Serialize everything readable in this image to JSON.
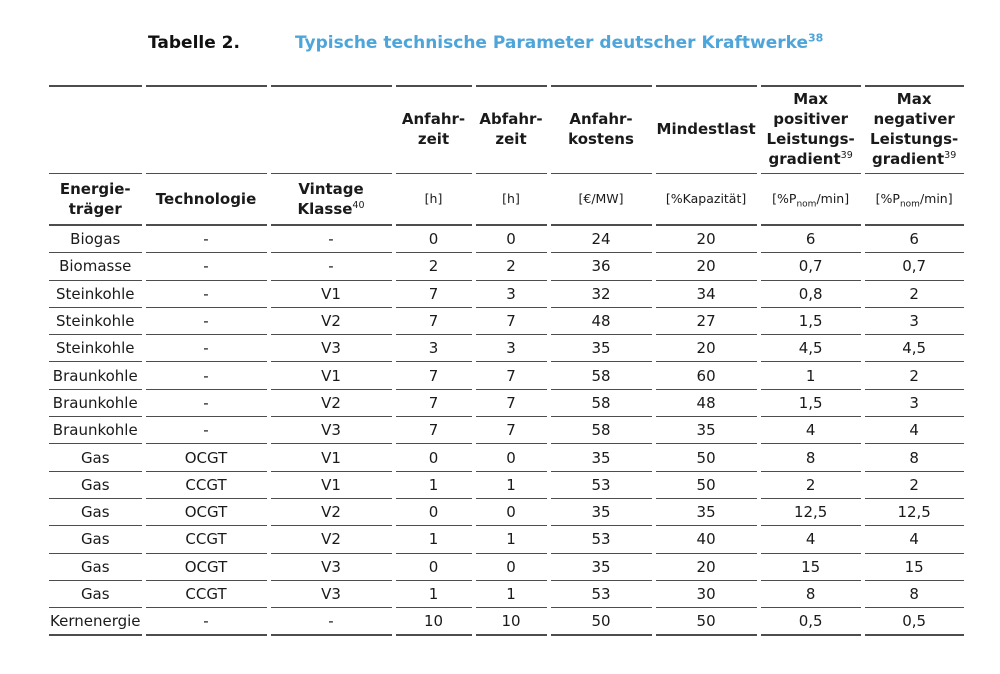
{
  "title": {
    "label": "Tabelle 2.",
    "caption": "Typische technische Parameter deutscher Kraftwerke",
    "caption_sup": "38",
    "accent_color": "#4ea5da"
  },
  "table": {
    "header_row1": {
      "col4": "Anfahr-\nzeit",
      "col5": "Abfahr-\nzeit",
      "col6": "Anfahr-\nkostens",
      "col7": "Mindestlast",
      "col8": "Max\npositiver\nLeistungs-\ngradient",
      "col8_sup": "39",
      "col9": "Max\nnegativer\nLeistungs-\ngradient",
      "col9_sup": "39"
    },
    "header_row2": {
      "col1": "Energie-\nträger",
      "col2": "Technologie",
      "col3": "Vintage\nKlasse",
      "col3_sup": "40",
      "col4": "[h]",
      "col5": "[h]",
      "col6": "[€/MW]",
      "col7": "[%Kapazität]",
      "unit_prefix": "[%P",
      "unit_sub": "nom",
      "unit_suffix": "/min]"
    },
    "rows": [
      [
        "Biogas",
        "-",
        "-",
        "0",
        "0",
        "24",
        "20",
        "6",
        "6"
      ],
      [
        "Biomasse",
        "-",
        "-",
        "2",
        "2",
        "36",
        "20",
        "0,7",
        "0,7"
      ],
      [
        "Steinkohle",
        "-",
        "V1",
        "7",
        "3",
        "32",
        "34",
        "0,8",
        "2"
      ],
      [
        "Steinkohle",
        "-",
        "V2",
        "7",
        "7",
        "48",
        "27",
        "1,5",
        "3"
      ],
      [
        "Steinkohle",
        "-",
        "V3",
        "3",
        "3",
        "35",
        "20",
        "4,5",
        "4,5"
      ],
      [
        "Braunkohle",
        "-",
        "V1",
        "7",
        "7",
        "58",
        "60",
        "1",
        "2"
      ],
      [
        "Braunkohle",
        "-",
        "V2",
        "7",
        "7",
        "58",
        "48",
        "1,5",
        "3"
      ],
      [
        "Braunkohle",
        "-",
        "V3",
        "7",
        "7",
        "58",
        "35",
        "4",
        "4"
      ],
      [
        "Gas",
        "OCGT",
        "V1",
        "0",
        "0",
        "35",
        "50",
        "8",
        "8"
      ],
      [
        "Gas",
        "CCGT",
        "V1",
        "1",
        "1",
        "53",
        "50",
        "2",
        "2"
      ],
      [
        "Gas",
        "OCGT",
        "V2",
        "0",
        "0",
        "35",
        "35",
        "12,5",
        "12,5"
      ],
      [
        "Gas",
        "CCGT",
        "V2",
        "1",
        "1",
        "53",
        "40",
        "4",
        "4"
      ],
      [
        "Gas",
        "OCGT",
        "V3",
        "0",
        "0",
        "35",
        "20",
        "15",
        "15"
      ],
      [
        "Gas",
        "CCGT",
        "V3",
        "1",
        "1",
        "53",
        "30",
        "8",
        "8"
      ],
      [
        "Kernenergie",
        "-",
        "-",
        "10",
        "10",
        "50",
        "50",
        "0,5",
        "0,5"
      ]
    ]
  }
}
